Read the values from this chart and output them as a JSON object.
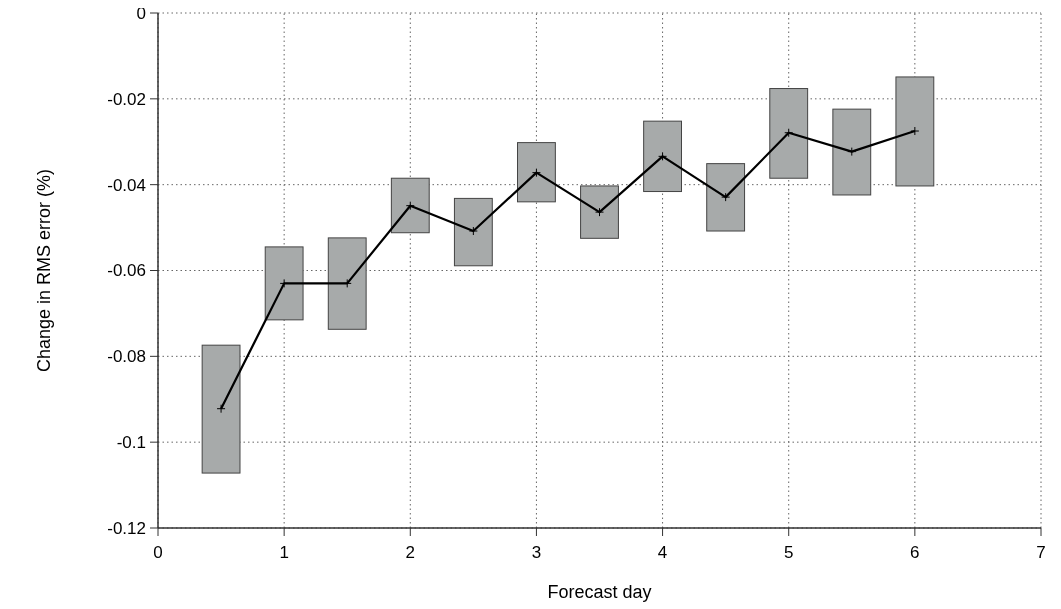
{
  "chart_data": {
    "type": "line",
    "xlabel": "Forecast day",
    "ylabel": "Change in RMS error (%)",
    "xlim": [
      0,
      7
    ],
    "xticks": [
      0,
      1,
      2,
      3,
      4,
      5,
      6,
      7
    ],
    "ylim": [
      -0.12,
      0
    ],
    "yticks": [
      -0.12,
      -0.1,
      -0.08,
      -0.06,
      -0.04,
      -0.02,
      0
    ],
    "grid": true,
    "series": [
      {
        "type": "bar",
        "color": "#a7aaaa",
        "x": [
          0.5,
          1,
          1.5,
          2,
          2.5,
          3,
          3.5,
          4,
          4.5,
          5,
          5.5,
          6
        ],
        "base": [
          -0.1072,
          -0.0715,
          -0.0737,
          -0.0512,
          -0.0589,
          -0.044,
          -0.0525,
          -0.0416,
          -0.0508,
          -0.0385,
          -0.0424,
          -0.0403
        ],
        "values": [
          0.0298,
          0.017,
          0.0213,
          0.0127,
          0.0157,
          0.0138,
          0.0122,
          0.0164,
          0.0157,
          0.0209,
          0.02,
          0.0254
        ]
      },
      {
        "color": "#000000",
        "marker": "cross",
        "line_style": "solid",
        "x": [
          0.5,
          1,
          1.5,
          2,
          2.5,
          3,
          3.5,
          4,
          4.5,
          5,
          5.5,
          6
        ],
        "values": [
          -0.0922,
          -0.063,
          -0.063,
          -0.0449,
          -0.0508,
          -0.0372,
          -0.0464,
          -0.0334,
          -0.0429,
          -0.0279,
          -0.0323,
          -0.0275
        ]
      }
    ]
  }
}
